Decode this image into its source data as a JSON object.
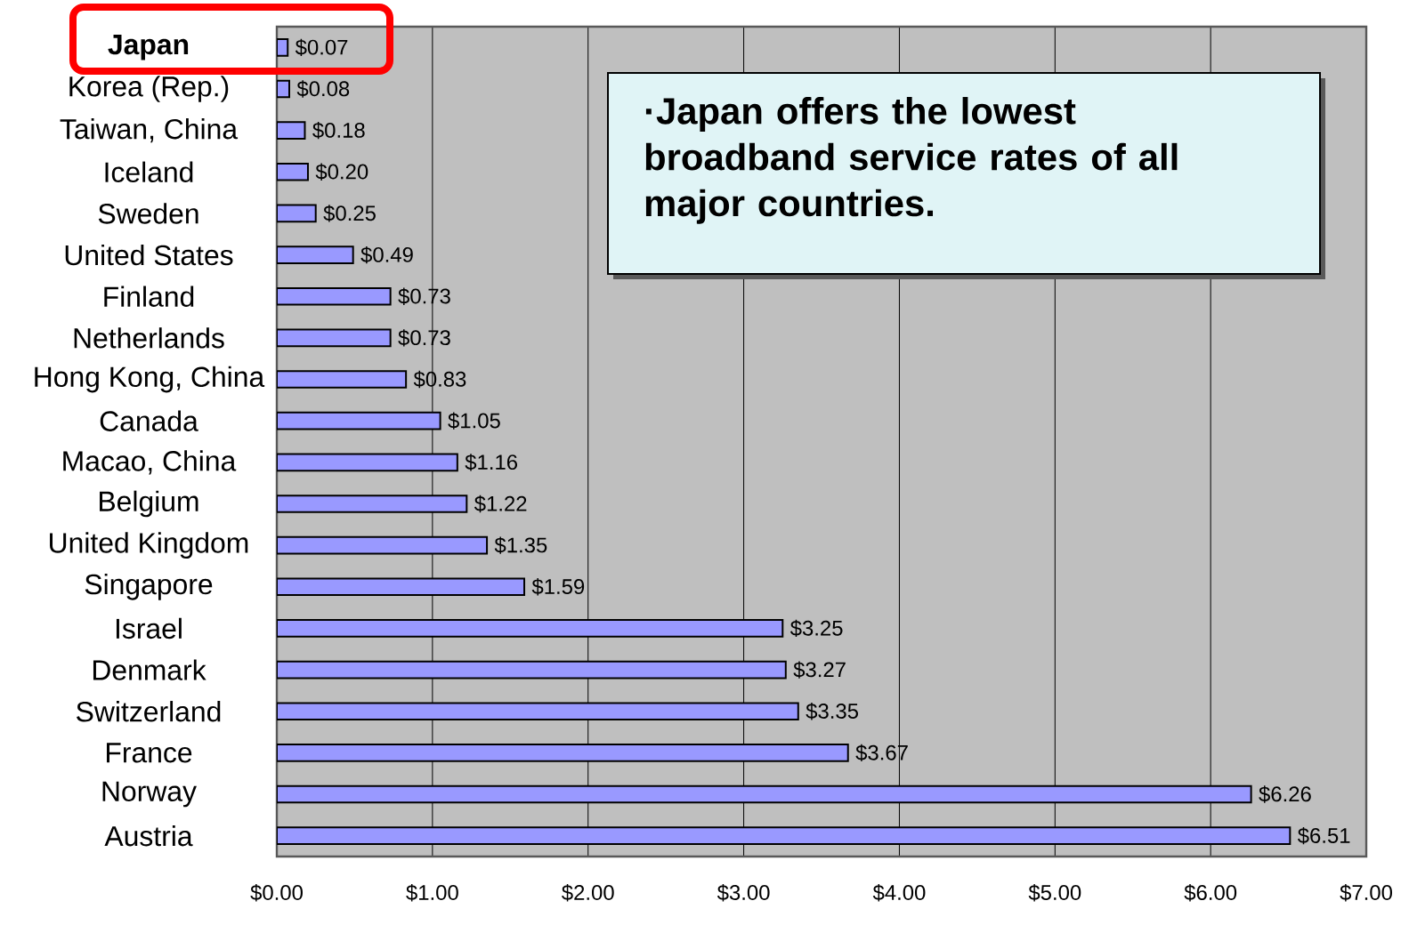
{
  "chart_data": {
    "type": "bar",
    "orientation": "horizontal",
    "categories": [
      "**Japan**",
      "Korea (Rep.)",
      "Taiwan, China",
      "Iceland",
      "Sweden",
      "United States",
      "Finland",
      "Netherlands",
      "Hong Kong, China",
      "Canada",
      "Macao, China",
      "Belgium",
      "United Kingdom",
      "Singapore",
      "Israel",
      "Denmark",
      "Switzerland",
      "France",
      "Norway",
      "Austria"
    ],
    "values": [
      0.07,
      0.08,
      0.18,
      0.2,
      0.25,
      0.49,
      0.73,
      0.73,
      0.83,
      1.05,
      1.16,
      1.22,
      1.35,
      1.59,
      3.25,
      3.27,
      3.35,
      3.67,
      6.26,
      6.51
    ],
    "value_labels": [
      "$0.07",
      "$0.08",
      "$0.18",
      "$0.20",
      "$0.25",
      "$0.49",
      "$0.73",
      "$0.73",
      "$0.83",
      "$1.05",
      "$1.16",
      "$1.22",
      "$1.35",
      "$1.59",
      "$3.25",
      "$3.27",
      "$3.35",
      "$3.67",
      "$6.26",
      "$6.51"
    ],
    "color": "#9999ff",
    "xlim": [
      0,
      7
    ],
    "xticks": [
      {
        "value": 0,
        "label": "$0.00"
      },
      {
        "value": 1,
        "label": "$1.00"
      },
      {
        "value": 2,
        "label": "$2.00"
      },
      {
        "value": 3,
        "label": "$3.00"
      },
      {
        "value": 4,
        "label": "$4.00"
      },
      {
        "value": 5,
        "label": "$5.00"
      },
      {
        "value": 6,
        "label": "$6.00"
      },
      {
        "value": 7,
        "label": "$7.00"
      }
    ],
    "grid": "x",
    "annotations": [
      "·Japan offers the lowest broadband service rates of all major countries."
    ]
  }
}
